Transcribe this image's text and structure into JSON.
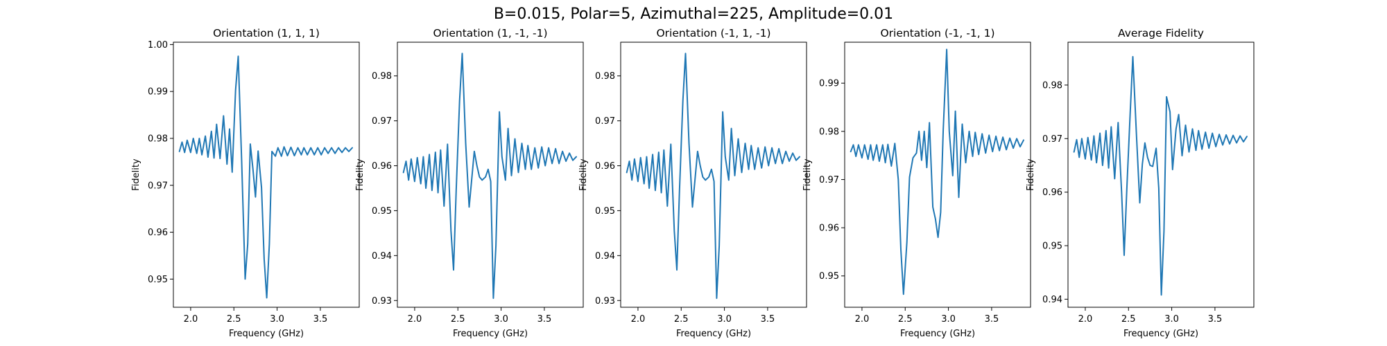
{
  "suptitle": "B=0.015, Polar=5, Azimuthal=225, Amplitude=0.01",
  "line_color": "#1f77b4",
  "chart_data": [
    {
      "type": "line",
      "title": "Orientation (1, 1, 1)",
      "xlabel": "Frequency (GHz)",
      "ylabel": "Fidelity",
      "xlim": [
        1.8,
        3.95
      ],
      "ylim": [
        0.944,
        1.0005
      ],
      "xticks": [
        2.0,
        2.5,
        3.0,
        3.5
      ],
      "xtick_labels": [
        "2.0",
        "2.5",
        "3.0",
        "3.5"
      ],
      "yticks": [
        0.95,
        0.96,
        0.97,
        0.98,
        0.99,
        1.0
      ],
      "ytick_labels": [
        "0.95",
        "0.96",
        "0.97",
        "0.98",
        "0.99",
        "1.00"
      ],
      "series": [
        {
          "x": [
            1.87,
            1.9,
            1.93,
            1.96,
            2.0,
            2.03,
            2.07,
            2.1,
            2.13,
            2.17,
            2.2,
            2.24,
            2.27,
            2.3,
            2.34,
            2.38,
            2.42,
            2.45,
            2.48,
            2.52,
            2.55,
            2.59,
            2.63,
            2.66,
            2.69,
            2.72,
            2.75,
            2.78,
            2.82,
            2.85,
            2.88,
            2.91,
            2.94,
            2.98,
            3.01,
            3.05,
            3.08,
            3.12,
            3.16,
            3.2,
            3.24,
            3.28,
            3.31,
            3.35,
            3.39,
            3.43,
            3.47,
            3.51,
            3.55,
            3.59,
            3.63,
            3.67,
            3.71,
            3.75,
            3.79,
            3.83,
            3.87
          ],
          "y": [
            0.9772,
            0.9792,
            0.977,
            0.9796,
            0.977,
            0.98,
            0.9768,
            0.98,
            0.9765,
            0.9805,
            0.976,
            0.9815,
            0.9758,
            0.983,
            0.9757,
            0.9848,
            0.9745,
            0.982,
            0.9728,
            0.9903,
            0.9975,
            0.975,
            0.95,
            0.9575,
            0.9788,
            0.9735,
            0.9675,
            0.9773,
            0.9695,
            0.9543,
            0.946,
            0.9575,
            0.9772,
            0.9762,
            0.978,
            0.9762,
            0.9782,
            0.9763,
            0.9781,
            0.9763,
            0.978,
            0.9765,
            0.978,
            0.9765,
            0.978,
            0.9765,
            0.978,
            0.9765,
            0.978,
            0.9768,
            0.978,
            0.9768,
            0.978,
            0.977,
            0.978,
            0.9772,
            0.978
          ]
        }
      ]
    },
    {
      "type": "line",
      "title": "Orientation (1, -1, -1)",
      "xlabel": "Frequency (GHz)",
      "ylabel": "Fidelity",
      "xlim": [
        1.8,
        3.95
      ],
      "ylim": [
        0.9285,
        0.9875
      ],
      "xticks": [
        2.0,
        2.5,
        3.0,
        3.5
      ],
      "xtick_labels": [
        "2.0",
        "2.5",
        "3.0",
        "3.5"
      ],
      "yticks": [
        0.93,
        0.94,
        0.95,
        0.96,
        0.97,
        0.98
      ],
      "ytick_labels": [
        "0.93",
        "0.94",
        "0.95",
        "0.96",
        "0.97",
        "0.98"
      ],
      "series": [
        {
          "x": [
            1.87,
            1.9,
            1.93,
            1.96,
            2.0,
            2.03,
            2.07,
            2.1,
            2.13,
            2.17,
            2.2,
            2.24,
            2.27,
            2.3,
            2.34,
            2.38,
            2.42,
            2.45,
            2.48,
            2.52,
            2.55,
            2.59,
            2.63,
            2.66,
            2.69,
            2.72,
            2.75,
            2.78,
            2.82,
            2.85,
            2.88,
            2.91,
            2.94,
            2.98,
            3.01,
            3.05,
            3.08,
            3.12,
            3.16,
            3.2,
            3.24,
            3.28,
            3.31,
            3.35,
            3.39,
            3.43,
            3.47,
            3.51,
            3.55,
            3.59,
            3.63,
            3.67,
            3.71,
            3.75,
            3.79,
            3.83,
            3.87
          ],
          "y": [
            0.9585,
            0.961,
            0.9568,
            0.9615,
            0.9565,
            0.9618,
            0.956,
            0.962,
            0.955,
            0.9625,
            0.9545,
            0.963,
            0.954,
            0.9635,
            0.951,
            0.9648,
            0.9455,
            0.9368,
            0.9545,
            0.9745,
            0.985,
            0.965,
            0.9508,
            0.957,
            0.9632,
            0.96,
            0.9575,
            0.9568,
            0.9575,
            0.9592,
            0.9565,
            0.9305,
            0.9422,
            0.972,
            0.962,
            0.9568,
            0.9683,
            0.9578,
            0.966,
            0.9585,
            0.965,
            0.9592,
            0.9645,
            0.9592,
            0.964,
            0.9595,
            0.9642,
            0.96,
            0.964,
            0.9605,
            0.9638,
            0.9605,
            0.9632,
            0.961,
            0.9628,
            0.9612,
            0.962
          ]
        }
      ]
    },
    {
      "type": "line",
      "title": "Orientation (-1, 1, -1)",
      "xlabel": "Frequency (GHz)",
      "ylabel": "Fidelity",
      "xlim": [
        1.8,
        3.95
      ],
      "ylim": [
        0.9285,
        0.9875
      ],
      "xticks": [
        2.0,
        2.5,
        3.0,
        3.5
      ],
      "xtick_labels": [
        "2.0",
        "2.5",
        "3.0",
        "3.5"
      ],
      "yticks": [
        0.93,
        0.94,
        0.95,
        0.96,
        0.97,
        0.98
      ],
      "ytick_labels": [
        "0.93",
        "0.94",
        "0.95",
        "0.96",
        "0.97",
        "0.98"
      ],
      "series": [
        {
          "x": [
            1.87,
            1.9,
            1.93,
            1.96,
            2.0,
            2.03,
            2.07,
            2.1,
            2.13,
            2.17,
            2.2,
            2.24,
            2.27,
            2.3,
            2.34,
            2.38,
            2.42,
            2.45,
            2.48,
            2.52,
            2.55,
            2.59,
            2.63,
            2.66,
            2.69,
            2.72,
            2.75,
            2.78,
            2.82,
            2.85,
            2.88,
            2.91,
            2.94,
            2.98,
            3.01,
            3.05,
            3.08,
            3.12,
            3.16,
            3.2,
            3.24,
            3.28,
            3.31,
            3.35,
            3.39,
            3.43,
            3.47,
            3.51,
            3.55,
            3.59,
            3.63,
            3.67,
            3.71,
            3.75,
            3.79,
            3.83,
            3.87
          ],
          "y": [
            0.9585,
            0.961,
            0.9568,
            0.9615,
            0.9565,
            0.9618,
            0.956,
            0.962,
            0.955,
            0.9625,
            0.9545,
            0.963,
            0.954,
            0.9635,
            0.951,
            0.9648,
            0.9455,
            0.9368,
            0.9545,
            0.9745,
            0.985,
            0.965,
            0.9508,
            0.957,
            0.9632,
            0.96,
            0.9575,
            0.9568,
            0.9575,
            0.9592,
            0.9565,
            0.9305,
            0.9422,
            0.972,
            0.962,
            0.9568,
            0.9683,
            0.9578,
            0.966,
            0.9585,
            0.965,
            0.9592,
            0.9645,
            0.9592,
            0.964,
            0.9595,
            0.9642,
            0.96,
            0.964,
            0.9605,
            0.9638,
            0.9605,
            0.9632,
            0.961,
            0.9628,
            0.9612,
            0.962
          ]
        }
      ]
    },
    {
      "type": "line",
      "title": "Orientation (-1, -1, 1)",
      "xlabel": "Frequency (GHz)",
      "ylabel": "Fidelity",
      "xlim": [
        1.8,
        3.95
      ],
      "ylim": [
        0.9435,
        0.9985
      ],
      "xticks": [
        2.0,
        2.5,
        3.0,
        3.5
      ],
      "xtick_labels": [
        "2.0",
        "2.5",
        "3.0",
        "3.5"
      ],
      "yticks": [
        0.95,
        0.96,
        0.97,
        0.98,
        0.99
      ],
      "ytick_labels": [
        "0.95",
        "0.96",
        "0.97",
        "0.98",
        "0.99"
      ],
      "series": [
        {
          "x": [
            1.87,
            1.9,
            1.93,
            1.96,
            2.0,
            2.03,
            2.07,
            2.1,
            2.13,
            2.17,
            2.2,
            2.24,
            2.27,
            2.3,
            2.34,
            2.38,
            2.42,
            2.45,
            2.48,
            2.52,
            2.55,
            2.59,
            2.63,
            2.66,
            2.69,
            2.72,
            2.75,
            2.78,
            2.82,
            2.85,
            2.88,
            2.91,
            2.94,
            2.98,
            3.01,
            3.05,
            3.08,
            3.12,
            3.16,
            3.2,
            3.24,
            3.28,
            3.31,
            3.35,
            3.39,
            3.43,
            3.47,
            3.51,
            3.55,
            3.59,
            3.63,
            3.67,
            3.71,
            3.75,
            3.79,
            3.83,
            3.87
          ],
          "y": [
            0.9758,
            0.9772,
            0.9748,
            0.9772,
            0.9745,
            0.9772,
            0.9742,
            0.9772,
            0.974,
            0.9772,
            0.9738,
            0.9772,
            0.9735,
            0.9773,
            0.9728,
            0.9775,
            0.97,
            0.9555,
            0.9462,
            0.957,
            0.9705,
            0.9745,
            0.9755,
            0.98,
            0.974,
            0.98,
            0.9725,
            0.9818,
            0.9643,
            0.9618,
            0.958,
            0.9632,
            0.9803,
            0.997,
            0.98,
            0.9708,
            0.9842,
            0.9663,
            0.9815,
            0.9735,
            0.98,
            0.9748,
            0.9798,
            0.9752,
            0.9795,
            0.9755,
            0.9792,
            0.9758,
            0.979,
            0.976,
            0.9788,
            0.9762,
            0.9786,
            0.9765,
            0.9785,
            0.9768,
            0.9782
          ]
        }
      ]
    },
    {
      "type": "line",
      "title": "Average Fidelity",
      "xlabel": "Frequency (GHz)",
      "ylabel": "Fidelity",
      "xlim": [
        1.8,
        3.95
      ],
      "ylim": [
        0.9385,
        0.988
      ],
      "xticks": [
        2.0,
        2.5,
        3.0,
        3.5
      ],
      "xtick_labels": [
        "2.0",
        "2.5",
        "3.0",
        "3.5"
      ],
      "yticks": [
        0.94,
        0.95,
        0.96,
        0.97,
        0.98
      ],
      "ytick_labels": [
        "0.94",
        "0.95",
        "0.96",
        "0.97",
        "0.98"
      ],
      "series": [
        {
          "x": [
            1.87,
            1.9,
            1.93,
            1.96,
            2.0,
            2.03,
            2.07,
            2.1,
            2.13,
            2.17,
            2.2,
            2.24,
            2.27,
            2.3,
            2.34,
            2.38,
            2.42,
            2.45,
            2.48,
            2.52,
            2.55,
            2.59,
            2.63,
            2.66,
            2.69,
            2.72,
            2.75,
            2.78,
            2.82,
            2.85,
            2.88,
            2.91,
            2.94,
            2.98,
            3.01,
            3.05,
            3.08,
            3.12,
            3.16,
            3.2,
            3.24,
            3.28,
            3.31,
            3.35,
            3.39,
            3.43,
            3.47,
            3.51,
            3.55,
            3.59,
            3.63,
            3.67,
            3.71,
            3.75,
            3.79,
            3.83,
            3.87
          ],
          "y": [
            0.9675,
            0.9698,
            0.9665,
            0.97,
            0.9662,
            0.9702,
            0.966,
            0.9705,
            0.9655,
            0.971,
            0.965,
            0.9715,
            0.9645,
            0.9722,
            0.9625,
            0.973,
            0.96,
            0.9482,
            0.9605,
            0.9748,
            0.9853,
            0.9713,
            0.958,
            0.9652,
            0.9692,
            0.9665,
            0.965,
            0.9648,
            0.9682,
            0.9607,
            0.9408,
            0.9527,
            0.9778,
            0.975,
            0.9642,
            0.9718,
            0.9745,
            0.9668,
            0.9725,
            0.9675,
            0.9718,
            0.9678,
            0.9715,
            0.968,
            0.9712,
            0.9682,
            0.971,
            0.9685,
            0.9708,
            0.9688,
            0.9707,
            0.969,
            0.9706,
            0.9692,
            0.9705,
            0.9694,
            0.9704
          ]
        }
      ]
    }
  ]
}
